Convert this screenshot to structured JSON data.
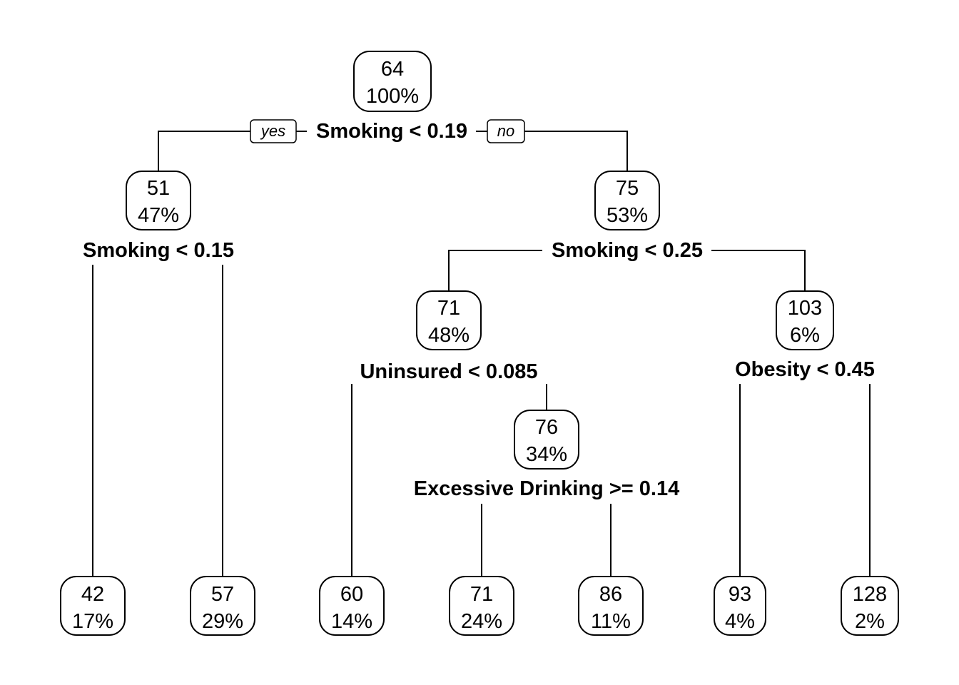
{
  "branch_labels": {
    "yes": "yes",
    "no": "no"
  },
  "nodes": [
    {
      "id": "n1",
      "value": "64",
      "percent": "100%"
    },
    {
      "id": "n2",
      "value": "51",
      "percent": "47%"
    },
    {
      "id": "n3",
      "value": "75",
      "percent": "53%"
    },
    {
      "id": "n6",
      "value": "71",
      "percent": "48%"
    },
    {
      "id": "n7",
      "value": "103",
      "percent": "6%"
    },
    {
      "id": "n13",
      "value": "76",
      "percent": "34%"
    },
    {
      "id": "leaf1",
      "value": "42",
      "percent": "17%"
    },
    {
      "id": "leaf2",
      "value": "57",
      "percent": "29%"
    },
    {
      "id": "leaf3",
      "value": "60",
      "percent": "14%"
    },
    {
      "id": "leaf4",
      "value": "71",
      "percent": "24%"
    },
    {
      "id": "leaf5",
      "value": "86",
      "percent": "11%"
    },
    {
      "id": "leaf6",
      "value": "93",
      "percent": "4%"
    },
    {
      "id": "leaf7",
      "value": "128",
      "percent": "2%"
    }
  ],
  "splits": [
    {
      "id": "s1",
      "label": "Smoking < 0.19"
    },
    {
      "id": "s2",
      "label": "Smoking < 0.15"
    },
    {
      "id": "s3",
      "label": "Smoking < 0.25"
    },
    {
      "id": "s6",
      "label": "Uninsured < 0.085"
    },
    {
      "id": "s7",
      "label": "Obesity < 0.45"
    },
    {
      "id": "s13",
      "label": "Excessive Drinking >= 0.14"
    }
  ]
}
